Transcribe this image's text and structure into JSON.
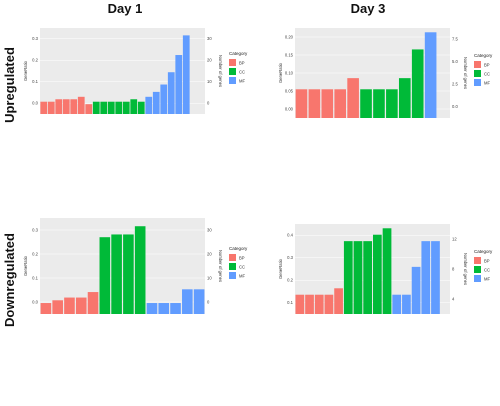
{
  "columns": [
    "Day 1",
    "Day 3"
  ],
  "rows": [
    "Upregulated",
    "Downregulated"
  ],
  "colors": {
    "BP": "#f8766d",
    "CC": "#00ba38",
    "MF": "#619cff"
  },
  "chart_data": [
    {
      "type": "bar",
      "ylabel": "GeneRatio",
      "y2label": "Number of genes",
      "ylim": [
        0,
        0.35
      ],
      "yticks": [
        "0.0",
        "0.1",
        "0.2",
        "0.3"
      ],
      "y2ticks": [
        "0",
        "10",
        "20",
        "30"
      ],
      "legend_title": "Category",
      "legend": [
        "BP",
        "CC",
        "MF"
      ],
      "categories": [
        "",
        "",
        "",
        "",
        "",
        "",
        "",
        "",
        "",
        "",
        "",
        "",
        "",
        "",
        "",
        "",
        "",
        "",
        "",
        "",
        "",
        ""
      ],
      "series": [
        {
          "name": "BP",
          "values": [
            0.05,
            0.05,
            0.06,
            0.06,
            0.06,
            0.07,
            0.04,
            null,
            null,
            null,
            null,
            null,
            null,
            null,
            null,
            null,
            null,
            null,
            null,
            null,
            null,
            null
          ]
        },
        {
          "name": "CC",
          "values": [
            null,
            null,
            null,
            null,
            null,
            null,
            null,
            0.05,
            0.05,
            0.05,
            0.05,
            0.05,
            0.06,
            0.05,
            null,
            null,
            null,
            null,
            null,
            null,
            null,
            null
          ]
        },
        {
          "name": "MF",
          "values": [
            null,
            null,
            null,
            null,
            null,
            null,
            null,
            null,
            null,
            null,
            null,
            null,
            null,
            null,
            0.07,
            0.09,
            0.12,
            0.17,
            0.24,
            0.32,
            null,
            null
          ]
        }
      ]
    },
    {
      "type": "bar",
      "ylabel": "GeneRatio",
      "y2label": "Number of genes",
      "ylim": [
        0,
        0.21
      ],
      "yticks": [
        "0.00",
        "0.05",
        "0.10",
        "0.15",
        "0.20"
      ],
      "y2ticks": [
        "0.0",
        "2.5",
        "5.0",
        "7.5"
      ],
      "legend_title": "Category",
      "legend": [
        "BP",
        "CC",
        "MF"
      ],
      "categories": [
        "",
        "",
        "",
        "",
        "",
        "",
        "",
        "",
        "",
        "",
        "",
        ""
      ],
      "series": [
        {
          "name": "BP",
          "values": [
            0.067,
            0.067,
            0.067,
            0.067,
            0.093,
            null,
            null,
            null,
            null,
            null,
            null,
            null
          ]
        },
        {
          "name": "CC",
          "values": [
            null,
            null,
            null,
            null,
            null,
            0.067,
            0.067,
            0.067,
            0.093,
            0.16,
            null,
            null
          ]
        },
        {
          "name": "MF",
          "values": [
            null,
            null,
            null,
            null,
            null,
            null,
            null,
            null,
            null,
            null,
            0.2,
            null
          ]
        }
      ]
    },
    {
      "type": "bar",
      "ylabel": "GeneRatio",
      "y2label": "Number of genes",
      "ylim": [
        0,
        0.35
      ],
      "yticks": [
        "0.0",
        "0.1",
        "0.2",
        "0.3"
      ],
      "y2ticks": [
        "0",
        "10",
        "20",
        "30"
      ],
      "legend_title": "Category",
      "legend": [
        "BP",
        "CC",
        "MF"
      ],
      "categories": [
        "",
        "",
        "",
        "",
        "",
        "",
        "",
        "",
        "",
        "",
        "",
        "",
        "",
        ""
      ],
      "series": [
        {
          "name": "BP",
          "values": [
            0.04,
            0.05,
            0.06,
            0.06,
            0.08,
            null,
            null,
            null,
            null,
            null,
            null,
            null,
            null,
            null
          ]
        },
        {
          "name": "CC",
          "values": [
            null,
            null,
            null,
            null,
            null,
            0.28,
            0.29,
            0.29,
            0.32,
            null,
            null,
            null,
            null,
            null
          ]
        },
        {
          "name": "MF",
          "values": [
            null,
            null,
            null,
            null,
            null,
            null,
            null,
            null,
            null,
            0.04,
            0.04,
            0.04,
            0.09,
            0.09
          ]
        }
      ]
    },
    {
      "type": "bar",
      "ylabel": "GeneRatio",
      "y2label": "Number of genes",
      "ylim": [
        0,
        0.42
      ],
      "yticks": [
        "0.1",
        "0.2",
        "0.3",
        "0.4"
      ],
      "y2ticks": [
        "4",
        "8",
        "12"
      ],
      "legend_title": "Category",
      "legend": [
        "BP",
        "CC",
        "MF"
      ],
      "categories": [
        "",
        "",
        "",
        "",
        "",
        "",
        "",
        "",
        "",
        "",
        "",
        "",
        "",
        "",
        "",
        ""
      ],
      "series": [
        {
          "name": "BP",
          "values": [
            0.09,
            0.09,
            0.09,
            0.09,
            0.12,
            null,
            null,
            null,
            null,
            null,
            null,
            null,
            null,
            null,
            null,
            null
          ]
        },
        {
          "name": "CC",
          "values": [
            null,
            null,
            null,
            null,
            null,
            0.34,
            0.34,
            0.34,
            0.37,
            0.4,
            null,
            null,
            null,
            null,
            null,
            null
          ]
        },
        {
          "name": "MF",
          "values": [
            null,
            null,
            null,
            null,
            null,
            null,
            null,
            null,
            null,
            null,
            0.09,
            0.09,
            0.22,
            0.34,
            0.34,
            null
          ]
        }
      ]
    }
  ]
}
